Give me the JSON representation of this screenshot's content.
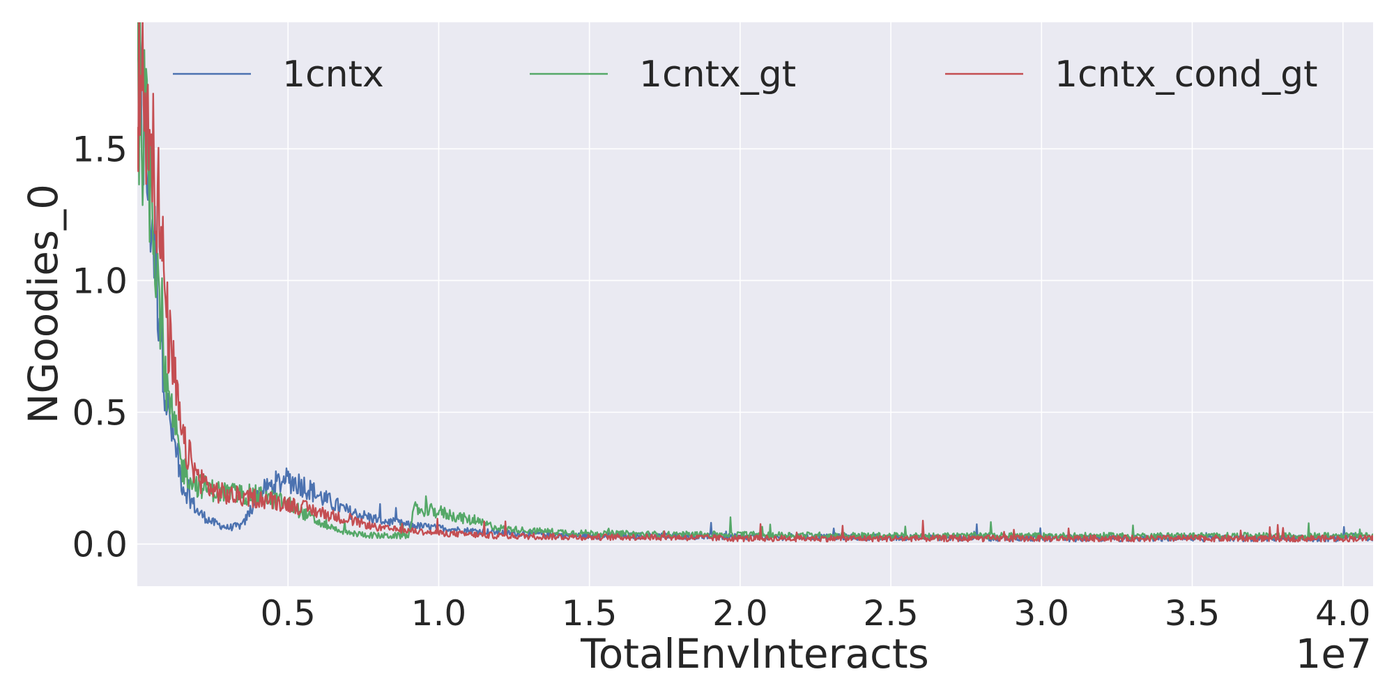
{
  "chart_data": {
    "type": "line",
    "title": "",
    "xlabel": "TotalEnvInteracts",
    "ylabel": "NGoodies_0",
    "x_offset_label": "1e7",
    "xlim": [
      0.0,
      4.1
    ],
    "ylim": [
      -0.16,
      1.98
    ],
    "x_ticks": [
      0.5,
      1.0,
      1.5,
      2.0,
      2.5,
      3.0,
      3.5,
      4.0
    ],
    "x_tick_labels": [
      "0.5",
      "1.0",
      "1.5",
      "2.0",
      "2.5",
      "3.0",
      "3.5",
      "4.0"
    ],
    "y_ticks": [
      0.0,
      0.5,
      1.0,
      1.5
    ],
    "y_tick_labels": [
      "0.0",
      "0.5",
      "1.0",
      "1.5"
    ],
    "grid": true,
    "legend_position": "top",
    "colors": {
      "background": "#eaeaf2",
      "grid": "#ffffff",
      "text": "#262626"
    },
    "series": [
      {
        "name": "1cntx",
        "color": "#4c72b0",
        "x": [
          0.0,
          0.05,
          0.1,
          0.15,
          0.2,
          0.25,
          0.3,
          0.35,
          0.4,
          0.45,
          0.5,
          0.55,
          0.6,
          0.7,
          0.8,
          0.9,
          1.0,
          1.1,
          1.25,
          1.5,
          1.75,
          2.0,
          2.5,
          3.0,
          3.5,
          4.1
        ],
        "values": [
          1.72,
          1.2,
          0.5,
          0.22,
          0.12,
          0.08,
          0.06,
          0.07,
          0.18,
          0.22,
          0.24,
          0.22,
          0.18,
          0.12,
          0.09,
          0.07,
          0.06,
          0.05,
          0.04,
          0.03,
          0.03,
          0.025,
          0.025,
          0.02,
          0.02,
          0.02
        ]
      },
      {
        "name": "1cntx_gt",
        "color": "#55a868",
        "x": [
          0.0,
          0.05,
          0.1,
          0.15,
          0.2,
          0.25,
          0.3,
          0.4,
          0.5,
          0.6,
          0.7,
          0.8,
          0.9,
          0.92,
          1.0,
          1.1,
          1.2,
          1.3,
          1.5,
          1.75,
          2.0,
          2.5,
          3.0,
          3.5,
          4.1
        ],
        "values": [
          1.74,
          1.3,
          0.55,
          0.28,
          0.22,
          0.2,
          0.19,
          0.18,
          0.15,
          0.08,
          0.04,
          0.03,
          0.03,
          0.13,
          0.12,
          0.09,
          0.06,
          0.05,
          0.04,
          0.035,
          0.035,
          0.03,
          0.03,
          0.03,
          0.03
        ]
      },
      {
        "name": "1cntx_cond_gt",
        "color": "#c44e52",
        "x": [
          0.0,
          0.05,
          0.1,
          0.15,
          0.2,
          0.25,
          0.3,
          0.4,
          0.5,
          0.6,
          0.7,
          0.8,
          0.9,
          1.0,
          1.2,
          1.5,
          1.75,
          2.0,
          2.5,
          3.0,
          3.5,
          4.1
        ],
        "values": [
          1.76,
          1.55,
          0.8,
          0.38,
          0.25,
          0.2,
          0.18,
          0.17,
          0.15,
          0.12,
          0.09,
          0.06,
          0.05,
          0.04,
          0.03,
          0.025,
          0.025,
          0.02,
          0.02,
          0.02,
          0.02,
          0.02
        ]
      }
    ]
  }
}
